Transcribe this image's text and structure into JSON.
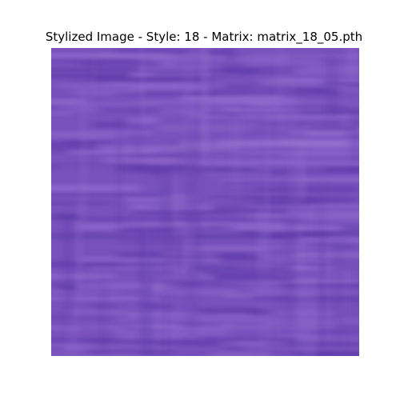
{
  "figure": {
    "title": "Stylized Image - Style: 18 - Matrix: matrix_18_05.pth"
  },
  "image": {
    "description_colors": {
      "base": "#7a52bd",
      "light": "#9670d0",
      "dark": "#5e3aa8"
    }
  }
}
